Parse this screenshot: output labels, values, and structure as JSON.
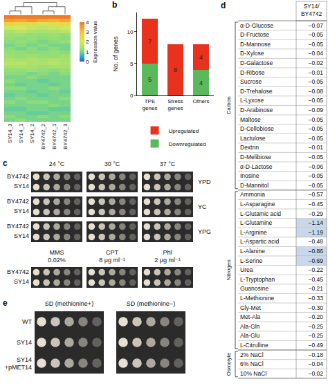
{
  "chart_data": [
    {
      "type": "heatmap",
      "x": [
        "SY14_3",
        "SY14_1",
        "SY14_2",
        "BY4742_2",
        "BY4742_1",
        "BY4742_3"
      ],
      "cells": [
        [
          4.1,
          4.2,
          4.0,
          4.3,
          4.2,
          4.1
        ],
        [
          3.5,
          3.4,
          3.6,
          3.3,
          3.2,
          3.4
        ],
        [
          2.6,
          2.5,
          2.4,
          2.2,
          2.3,
          2.5
        ],
        [
          1.9,
          2.0,
          1.8,
          1.7,
          1.8,
          1.9
        ],
        [
          1.5,
          1.6,
          1.5,
          1.4,
          1.5,
          1.6
        ],
        [
          1.3,
          1.3,
          1.2,
          1.2,
          1.3,
          1.2
        ],
        [
          1.2,
          1.1,
          1.2,
          1.1,
          1.2,
          1.1
        ],
        [
          1.1,
          1.2,
          1.1,
          1.0,
          1.1,
          1.2
        ],
        [
          1.0,
          1.1,
          1.0,
          1.1,
          1.0,
          1.0
        ],
        [
          1.1,
          1.0,
          1.1,
          1.0,
          1.1,
          1.0
        ],
        [
          1.2,
          1.2,
          1.1,
          1.1,
          1.2,
          1.1
        ],
        [
          1.3,
          1.2,
          1.3,
          1.2,
          1.2,
          1.3
        ],
        [
          1.5,
          1.4,
          1.5,
          1.4,
          1.5,
          1.4
        ],
        [
          1.6,
          1.6,
          1.5,
          1.5,
          1.6,
          1.5
        ],
        [
          1.4,
          1.5,
          1.4,
          1.3,
          1.4,
          1.4
        ],
        [
          1.2,
          1.2,
          1.3,
          1.2,
          1.1,
          1.2
        ],
        [
          1.1,
          1.1,
          1.0,
          1.1,
          1.0,
          1.1
        ],
        [
          1.0,
          1.0,
          1.1,
          1.0,
          1.0,
          1.0
        ],
        [
          1.1,
          1.0,
          1.0,
          0.9,
          1.0,
          1.0
        ],
        [
          1.0,
          0.9,
          1.0,
          1.0,
          0.9,
          1.0
        ],
        [
          1.1,
          1.1,
          1.0,
          1.0,
          1.1,
          1.0
        ],
        [
          1.0,
          1.0,
          0.9,
          1.0,
          1.0,
          0.9
        ],
        [
          0.9,
          1.0,
          1.0,
          0.9,
          1.0,
          1.0
        ],
        [
          1.0,
          1.1,
          1.0,
          1.0,
          1.0,
          1.1
        ],
        [
          1.1,
          1.0,
          1.1,
          1.1,
          1.0,
          1.0
        ],
        [
          1.0,
          1.0,
          1.0,
          1.0,
          1.1,
          1.0
        ],
        [
          0.9,
          0.9,
          1.0,
          1.0,
          0.9,
          0.9
        ],
        [
          1.0,
          1.0,
          0.9,
          0.9,
          1.0,
          1.0
        ],
        [
          1.1,
          1.0,
          1.0,
          1.1,
          1.0,
          1.1
        ],
        [
          1.0,
          1.1,
          1.0,
          1.0,
          1.0,
          1.0
        ]
      ],
      "colorbar": {
        "title": "Expression value",
        "range": [
          0,
          4
        ],
        "ticks": [
          0,
          1,
          2,
          3,
          4
        ]
      },
      "tick_labels": "x"
    },
    {
      "type": "bar",
      "label": "b",
      "stacked": true,
      "categories": [
        "TPE genes",
        "Stress genes",
        "Others"
      ],
      "series": [
        {
          "name": "Upregulated",
          "color": "#e8321e",
          "values": [
            7,
            8,
            4
          ]
        },
        {
          "name": "Downregulated",
          "color": "#5cb85c",
          "values": [
            5,
            null,
            4
          ]
        }
      ],
      "ylabel": "No. of genes",
      "ylim": [
        0,
        13
      ],
      "yticks": [
        0,
        5,
        10
      ],
      "data_labels": true,
      "legend": "bottom"
    }
  ],
  "panel_c": {
    "label": "c",
    "temperatures": [
      "24 °C",
      "30 °C",
      "37 °C"
    ],
    "media": [
      "YPD",
      "YC",
      "YPG"
    ],
    "strains": [
      "BY4742",
      "SY14"
    ],
    "treatments": [
      "MMS 0.02%",
      "CPT 8 μg ml⁻¹",
      "Phl 2 μg ml⁻¹"
    ]
  },
  "panel_d": {
    "label": "d",
    "header": "SY14/ BY4742",
    "groups": [
      {
        "name": "Carbon",
        "rows": [
          {
            "name": "α-D-Glucose",
            "value": "−0.07"
          },
          {
            "name": "D-Fructose",
            "value": "−0.05"
          },
          {
            "name": "D-Mannose",
            "value": "−0.05"
          },
          {
            "name": "D-Xylose",
            "value": "−0.04"
          },
          {
            "name": "D-Galactose",
            "value": "−0.02"
          },
          {
            "name": "D-Ribose",
            "value": "−0.01"
          },
          {
            "name": "Sucrose",
            "value": "−0.05"
          },
          {
            "name": "D-Trehalose",
            "value": "−0.08"
          },
          {
            "name": "L-Lyxose",
            "value": "−0.05"
          },
          {
            "name": "D-Arabinose",
            "value": "−0.09"
          },
          {
            "name": "Maltose",
            "value": "−0.05"
          },
          {
            "name": "D-Cellobiose",
            "value": "−0.05"
          },
          {
            "name": "Lactulose",
            "value": "−0.05"
          },
          {
            "name": "Dextrin",
            "value": "−0.01"
          },
          {
            "name": "D-Melibiose",
            "value": "−0.05"
          },
          {
            "name": "α-D-Lactose",
            "value": "−0.06"
          },
          {
            "name": "Inosine",
            "value": "−0.05"
          },
          {
            "name": "D-Mannitol",
            "value": "−0.05"
          }
        ]
      },
      {
        "name": "Nitrogen",
        "rows": [
          {
            "name": "Ammonia",
            "value": "−0.57"
          },
          {
            "name": "L-Asparagine",
            "value": "−0.45"
          },
          {
            "name": "L-Glutamic acid",
            "value": "−0.29"
          },
          {
            "name": "L-Glutamine",
            "value": "−1.14",
            "highlight": true
          },
          {
            "name": "L-Arginine",
            "value": "−1.19",
            "highlight": true
          },
          {
            "name": "L-Aspartic acid",
            "value": "−0.48"
          },
          {
            "name": "L-Alanine",
            "value": "−0.86",
            "highlight": true
          },
          {
            "name": "L-Serine",
            "value": "−0.69",
            "highlight": true
          },
          {
            "name": "Urea",
            "value": "−0.22"
          },
          {
            "name": "L-Tryptophan",
            "value": "−0.45"
          },
          {
            "name": "Guanosine",
            "value": "−0.21"
          },
          {
            "name": "L-Methionine",
            "value": "−0.33"
          },
          {
            "name": "Gly-Met",
            "value": "−0.30"
          },
          {
            "name": "Met-Ala",
            "value": "−0.20"
          },
          {
            "name": "Ala-Gln",
            "value": "−0.25"
          },
          {
            "name": "Ala-Glu",
            "value": "−0.25"
          },
          {
            "name": "L-Citrulline",
            "value": "−0.49"
          }
        ]
      },
      {
        "name": "Osmolyte",
        "rows": [
          {
            "name": "2% NaCl",
            "value": "−0.18"
          },
          {
            "name": "6% NaCl",
            "value": "−0.04"
          },
          {
            "name": "10% NaCl",
            "value": "−0.02"
          }
        ]
      }
    ]
  },
  "panel_e": {
    "label": "e",
    "media": [
      "SD (methionine+)",
      "SD (methionine−)"
    ],
    "strains": [
      "WT",
      "SY14",
      "SY14 +pMET14"
    ]
  }
}
